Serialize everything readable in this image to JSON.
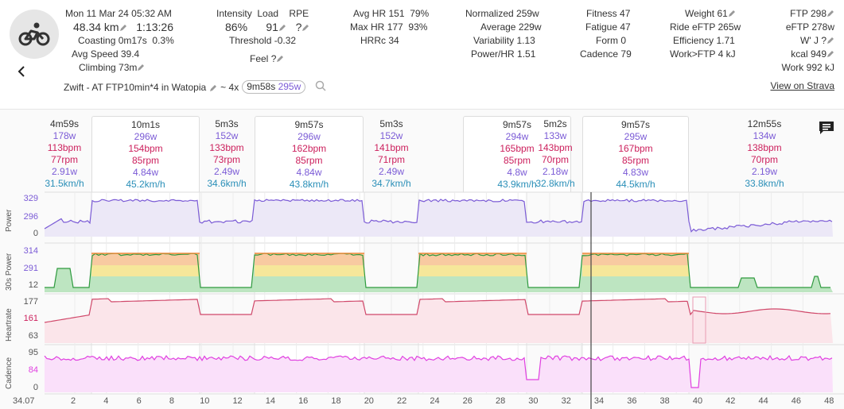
{
  "header": {
    "date": "Mon 11 Mar 24",
    "time": "05:32 AM",
    "distance": "48.34 km",
    "duration": "1:13:26",
    "coasting_label": "Coasting",
    "coasting_value": "0m17s",
    "coasting_pct": "0.3%",
    "avg_speed_label": "Avg Speed",
    "avg_speed_value": "39.4",
    "climbing_label": "Climbing",
    "climbing_value": "73m",
    "intensity_label": "Intensity",
    "intensity_value": "86%",
    "load_label": "Load",
    "load_value": "91",
    "rpe_label": "RPE",
    "rpe_value": "?",
    "threshold_label": "Threshold",
    "threshold_value": "-0.32",
    "feel_label": "Feel",
    "feel_value": "?",
    "avg_hr_label": "Avg HR",
    "avg_hr_value": "151",
    "avg_hr_pct": "79%",
    "max_hr_label": "Max HR",
    "max_hr_value": "177",
    "max_hr_pct": "93%",
    "hrrc_label": "HRRc",
    "hrrc_value": "34",
    "normalized_label": "Normalized",
    "normalized_value": "259w",
    "average_label": "Average",
    "average_value": "229w",
    "variability_label": "Variability",
    "variability_value": "1.13",
    "powerhr_label": "Power/HR",
    "powerhr_value": "1.51",
    "fitness_label": "Fitness",
    "fitness_value": "47",
    "fatigue_label": "Fatigue",
    "fatigue_value": "47",
    "form_label": "Form",
    "form_value": "0",
    "cadence_label": "Cadence",
    "cadence_value": "79",
    "weight_label": "Weight",
    "weight_value": "61",
    "ride_eftp_label": "Ride eFTP",
    "ride_eftp_value": "265w",
    "efficiency_label": "Efficiency",
    "efficiency_value": "1.71",
    "work_ftp_label": "Work>FTP",
    "work_ftp_value": "4 kJ",
    "ftp_label": "FTP",
    "ftp_value": "298",
    "eftp_label": "eFTP",
    "eftp_value": "278w",
    "wj_label": "W' J",
    "wj_value": "?",
    "kcal_label": "kcal",
    "kcal_value": "949",
    "work_label": "Work",
    "work_value": "992 kJ",
    "activity_name": "Zwift - AT FTP10min*4 in Watopia",
    "interval_prefix": "~ 4x",
    "interval_time": "9m58s",
    "interval_watts": "295w",
    "strava_link": "View on Strava"
  },
  "intervals": [
    {
      "time": "4m59s",
      "power": "178w",
      "hr": "113bpm",
      "cadence": "77rpm",
      "wkg": "2.91w",
      "speed": "31.5km/h",
      "box": false
    },
    {
      "time": "10m1s",
      "power": "296w",
      "hr": "154bpm",
      "cadence": "85rpm",
      "wkg": "4.84w",
      "speed": "45.2km/h",
      "box": true
    },
    {
      "time": "5m3s",
      "power": "152w",
      "hr": "133bpm",
      "cadence": "73rpm",
      "wkg": "2.49w",
      "speed": "34.6km/h",
      "box": false
    },
    {
      "time": "9m57s",
      "power": "296w",
      "hr": "162bpm",
      "cadence": "85rpm",
      "wkg": "4.84w",
      "speed": "43.8km/h",
      "box": true
    },
    {
      "time": "5m3s",
      "power": "152w",
      "hr": "141bpm",
      "cadence": "71rpm",
      "wkg": "2.49w",
      "speed": "34.7km/h",
      "box": false
    },
    {
      "time": "9m57s",
      "power": "294w",
      "hr": "165bpm",
      "cadence": "85rpm",
      "wkg": "4.8w",
      "speed": "43.9km/h",
      "box": true
    },
    {
      "time": "5m2s",
      "power": "133w",
      "hr": "143bpm",
      "cadence": "70rpm",
      "wkg": "2.18w",
      "speed": "32.8km/h",
      "box": false
    },
    {
      "time": "9m57s",
      "power": "295w",
      "hr": "167bpm",
      "cadence": "85rpm",
      "wkg": "4.83w",
      "speed": "44.5km/h",
      "box": true
    },
    {
      "time": "12m55s",
      "power": "134w",
      "hr": "138bpm",
      "cadence": "70rpm",
      "wkg": "2.19w",
      "speed": "33.8km/h",
      "box": false
    }
  ],
  "axes": {
    "power": {
      "label": "Power",
      "ticks": [
        "329",
        "296",
        "0"
      ]
    },
    "power30": {
      "label": "30s Power",
      "ticks": [
        "314",
        "291",
        "12"
      ]
    },
    "heartrate": {
      "label": "Heartrate",
      "ticks": [
        "177",
        "161",
        "63"
      ]
    },
    "cadence": {
      "label": "Cadence",
      "ticks": [
        "95",
        "84",
        "0"
      ]
    },
    "x_start": "34.07",
    "x_ticks": [
      "2",
      "4",
      "6",
      "8",
      "10",
      "12",
      "14",
      "16",
      "18",
      "20",
      "22",
      "24",
      "26",
      "28",
      "30",
      "32",
      "34",
      "36",
      "38",
      "40",
      "42",
      "44",
      "46",
      "48"
    ]
  },
  "colors": {
    "power": "#7b5bd6",
    "heartrate": "#d0486a",
    "cadence": "#e040e0",
    "speed": "#2a8fb8",
    "zone_orange": "#f08a3c",
    "zone_yellow": "#f0d050",
    "zone_green": "#60c060"
  }
}
